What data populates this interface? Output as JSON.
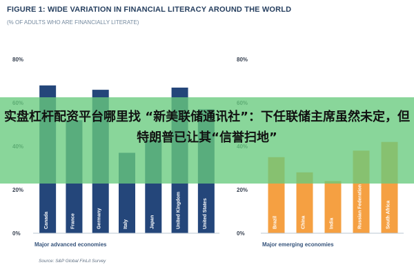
{
  "figure_title": "FIGURE 1: WIDE VARIATION IN FINANCIAL LITERACY AROUND THE WORLD",
  "figure_subtitle": "(% OF ADULTS WHO ARE FINANCIALLY LITERATE)",
  "source": "Source: S&P Global FinLit Survey",
  "overlay": {
    "headline": "实盘杠杆配资平台哪里找 “新美联储通讯社”：下任联储主席虽然未定，但特朗普已让其“信誉扫地”"
  },
  "colors": {
    "title": "#263f5f",
    "axis_text": "#374151",
    "advanced": "#24467a",
    "emerging": "#f5a042",
    "grid": "#cbd5e1",
    "overlay": "#68cb7e"
  },
  "chart_data": [
    {
      "type": "bar",
      "title": "",
      "xlabel": "Major advanced economies",
      "ylabel": "",
      "ylim": [
        0,
        80
      ],
      "yticks": [
        "80%",
        "60%",
        "40%",
        "20%",
        "0%"
      ],
      "categories": [
        "Canada",
        "France",
        "Germany",
        "Italy",
        "Japan",
        "United Kingdom",
        "United States"
      ],
      "values": [
        68,
        52,
        66,
        37,
        43,
        67,
        57
      ],
      "grid": false
    },
    {
      "type": "bar",
      "title": "",
      "xlabel": "Major emerging economies",
      "ylabel": "",
      "ylim": [
        0,
        80
      ],
      "yticks": [
        "80%",
        "60%",
        "40%",
        "20%",
        "0%"
      ],
      "categories": [
        "Brazil",
        "China",
        "India",
        "Russian Federation",
        "South Africa"
      ],
      "values": [
        35,
        28,
        24,
        38,
        42
      ],
      "grid": false
    }
  ]
}
